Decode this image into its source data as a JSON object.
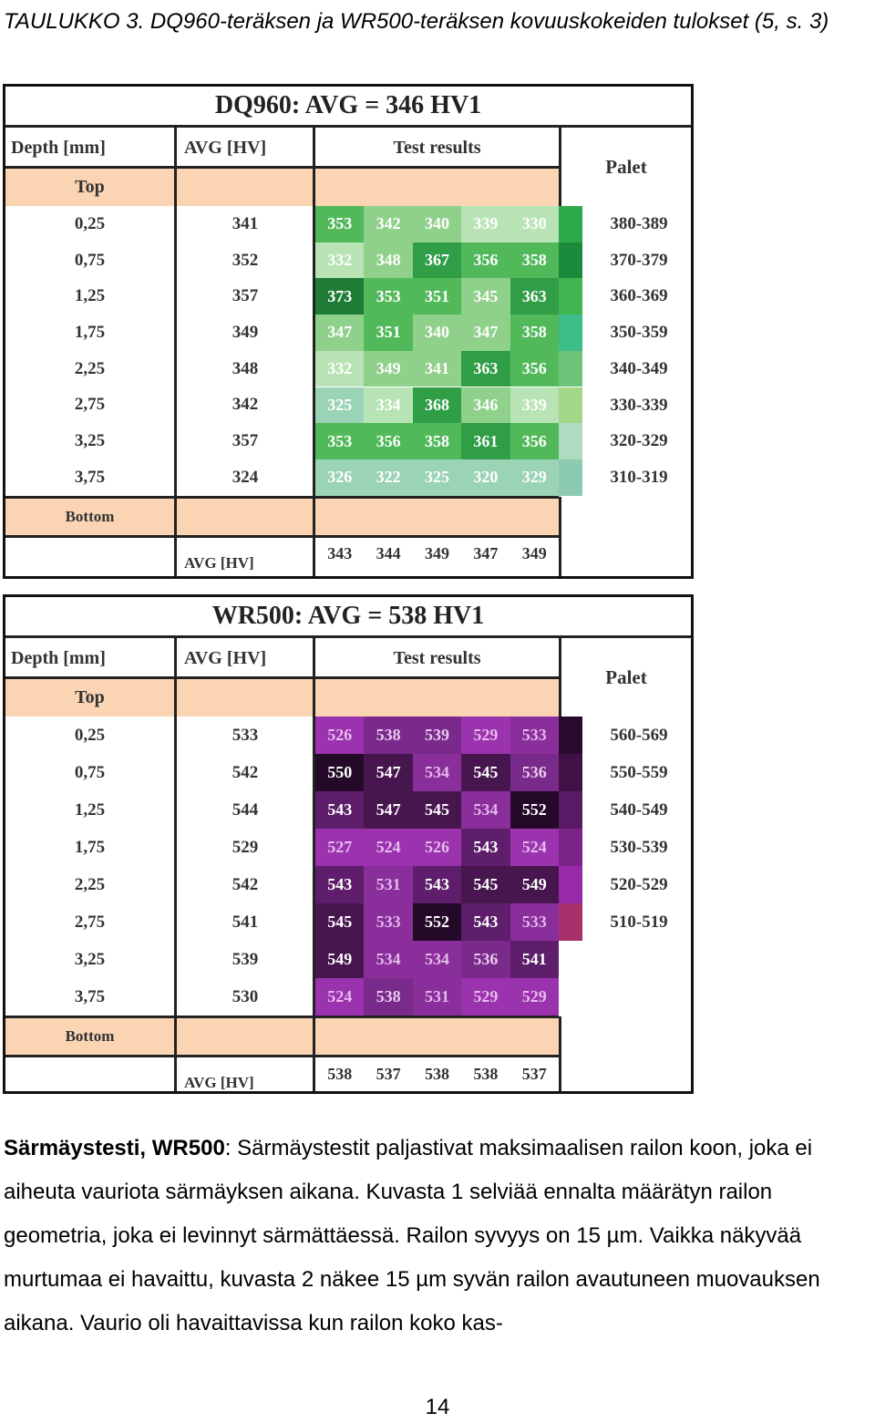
{
  "caption": "TAULUKKO 3. DQ960-teräksen ja WR500-teräksen kovuuskokeiden tulokset (5, s. 3)",
  "tables": [
    {
      "title": "DQ960: AVG = 346 HV1",
      "col_depth": "Depth [mm]",
      "col_avg": "AVG [HV]",
      "col_results": "Test results",
      "col_palet": "Palet",
      "top_label": "Top",
      "bottom_label": "Bottom",
      "avg_row_label": "AVG [HV]",
      "depths": [
        "0,25",
        "0,75",
        "1,25",
        "1,75",
        "2,25",
        "2,75",
        "3,25",
        "3,75"
      ],
      "row_avgs": [
        "341",
        "352",
        "357",
        "349",
        "348",
        "342",
        "357",
        "324"
      ],
      "results": [
        [
          "353",
          "342",
          "340",
          "339",
          "330"
        ],
        [
          "332",
          "348",
          "367",
          "356",
          "358"
        ],
        [
          "373",
          "353",
          "351",
          "345",
          "363"
        ],
        [
          "347",
          "351",
          "340",
          "347",
          "358"
        ],
        [
          "332",
          "349",
          "341",
          "363",
          "356"
        ],
        [
          "325",
          "334",
          "368",
          "346",
          "339"
        ],
        [
          "353",
          "356",
          "358",
          "361",
          "356"
        ],
        [
          "326",
          "322",
          "325",
          "320",
          "329"
        ]
      ],
      "col_avgs": [
        "343",
        "344",
        "349",
        "347",
        "349"
      ],
      "palette": [
        "380-389",
        "370-379",
        "360-369",
        "350-359",
        "340-349",
        "330-339",
        "320-329",
        "310-319"
      ],
      "palette_colors": [
        "#2eaa4a",
        "#1b8a3c",
        "#3fb650",
        "#3dbd8a",
        "#6cc57a",
        "#a3d686",
        "#aedcc0",
        "#8ccab2"
      ]
    },
    {
      "title": "WR500: AVG = 538 HV1",
      "col_depth": "Depth [mm]",
      "col_avg": "AVG [HV]",
      "col_results": "Test results",
      "col_palet": "Palet",
      "top_label": "Top",
      "bottom_label": "Bottom",
      "avg_row_label": "AVG [HV]",
      "depths": [
        "0,25",
        "0,75",
        "1,25",
        "1,75",
        "2,25",
        "2,75",
        "3,25",
        "3,75"
      ],
      "row_avgs": [
        "533",
        "542",
        "544",
        "529",
        "542",
        "541",
        "539",
        "530"
      ],
      "results": [
        [
          "526",
          "538",
          "539",
          "529",
          "533"
        ],
        [
          "550",
          "547",
          "534",
          "545",
          "536"
        ],
        [
          "543",
          "547",
          "545",
          "534",
          "552"
        ],
        [
          "527",
          "524",
          "526",
          "543",
          "524"
        ],
        [
          "543",
          "531",
          "543",
          "545",
          "549"
        ],
        [
          "545",
          "533",
          "552",
          "543",
          "533"
        ],
        [
          "549",
          "534",
          "534",
          "536",
          "541"
        ],
        [
          "524",
          "538",
          "531",
          "529",
          "529"
        ]
      ],
      "col_avgs": [
        "538",
        "537",
        "538",
        "538",
        "537"
      ],
      "palette": [
        "560-569",
        "550-559",
        "540-549",
        "530-539",
        "520-529",
        "510-519"
      ],
      "palette_colors": [
        "#2a0a2e",
        "#3f1144",
        "#5a1a66",
        "#7a2488",
        "#962aa8",
        "#a8306a"
      ]
    }
  ],
  "paragraph": {
    "bold_lead": "Särmäystesti, WR500",
    "text": ": Särmäystestit paljastivat maksimaalisen railon koon, joka ei aiheuta vauriota särmäyksen aikana. Kuvasta 1 selviää ennalta määrätyn railon geometria, joka ei levinnyt särmättäessä. Railon syvyys on 15 µm. Vaikka näkyvää murtumaa ei havaittu, kuvasta 2 näkee 15 µm syvän railon avautuneen muovauksen aikana. Vaurio oli havaittavissa kun railon koko kas-"
  },
  "page_number": "14"
}
